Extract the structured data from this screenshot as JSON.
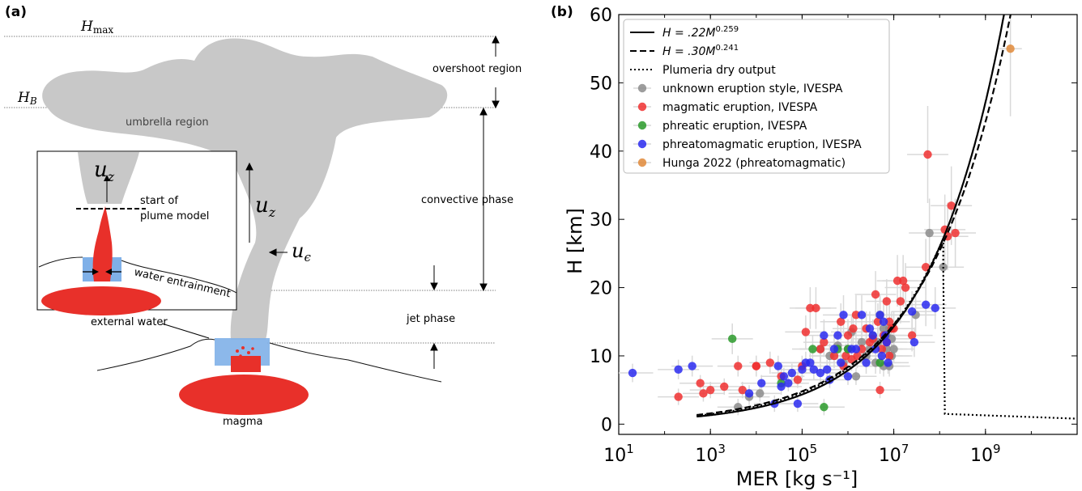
{
  "panel_a": {
    "label": "(a)",
    "h_max": "H",
    "h_max_sub": "max",
    "h_b": "H",
    "h_b_sub": "B",
    "overshoot": "overshoot region",
    "umbrella": "umbrella region",
    "convective": "convective phase",
    "jet": "jet phase",
    "external_water": "external water",
    "magma": "magma",
    "uz": "u",
    "uz_sub": "z",
    "ue": "u",
    "ue_sub": "ϵ",
    "inset": {
      "uz": "u",
      "uz_sub": "z",
      "start_line1": "start of",
      "start_line2": "plume model",
      "water_entrainment": "water entrainment"
    },
    "colors": {
      "plume": "#c8c8c8",
      "magma": "#e8302a",
      "water": "#7fb0e8"
    }
  },
  "chart_data": {
    "panel_label": "(b)",
    "type": "scatter",
    "xlabel": "MER [kg s⁻¹]",
    "ylabel": "H [km]",
    "xscale": "log",
    "xlim": [
      10,
      100000000000.0
    ],
    "ylim": [
      -1.5,
      60
    ],
    "x_ticks": [
      {
        "v": 10,
        "base": "10",
        "exp": "1"
      },
      {
        "v": 1000,
        "base": "10",
        "exp": "3"
      },
      {
        "v": 100000,
        "base": "10",
        "exp": "5"
      },
      {
        "v": 10000000,
        "base": "10",
        "exp": "7"
      },
      {
        "v": 1000000000,
        "base": "10",
        "exp": "9"
      }
    ],
    "y_ticks": [
      "0",
      "10",
      "20",
      "30",
      "40",
      "50",
      "60"
    ],
    "legend": {
      "position": "top-left",
      "line1_pre": "H = .22M",
      "line1_exp": "0.259",
      "line2_pre": "H = .30M",
      "line2_exp": "0.241",
      "line3": "Plumeria dry output"
    },
    "curves": [
      {
        "name": "H = .22M^0.259",
        "style": "solid",
        "coef": 0.22,
        "exp": 0.259
      },
      {
        "name": "H = .30M^0.241",
        "style": "dashed",
        "coef": 0.3,
        "exp": 0.241
      },
      {
        "name": "Plumeria dry output",
        "style": "dotted",
        "coef": 0.26,
        "exp": 0.25
      }
    ],
    "series": [
      {
        "name": "unknown eruption style, IVESPA",
        "color": "#8c8c8c",
        "points": [
          [
            4000.0,
            2.5
          ],
          [
            7000.0,
            4
          ],
          [
            12000.0,
            4.5
          ],
          [
            250000.0,
            11
          ],
          [
            400000.0,
            10
          ],
          [
            600000.0,
            11.5
          ],
          [
            800000.0,
            9
          ],
          [
            1000000.0,
            11
          ],
          [
            1200000.0,
            13.5
          ],
          [
            1500000.0,
            7
          ],
          [
            2000000.0,
            12
          ],
          [
            2500000.0,
            10
          ],
          [
            3000000.0,
            11
          ],
          [
            3500000.0,
            13
          ],
          [
            4000000.0,
            9
          ],
          [
            4500000.0,
            12
          ],
          [
            5000000.0,
            16
          ],
          [
            6000000.0,
            14
          ],
          [
            6000000.0,
            8.5
          ],
          [
            7000000.0,
            13
          ],
          [
            7000000.0,
            11
          ],
          [
            8000000.0,
            14
          ],
          [
            8000000.0,
            8.5
          ],
          [
            9000000.0,
            12.5
          ],
          [
            9000000.0,
            10
          ],
          [
            10000000.0,
            11
          ],
          [
            30000000.0,
            16
          ],
          [
            60000000.0,
            28
          ],
          [
            120000000.0,
            23
          ]
        ]
      },
      {
        "name": "magmatic eruption, IVESPA",
        "color": "#f03030",
        "points": [
          [
            200,
            4
          ],
          [
            600,
            6
          ],
          [
            700,
            4.5
          ],
          [
            1000,
            5
          ],
          [
            2000,
            5.5
          ],
          [
            4000,
            8.5
          ],
          [
            5000,
            5
          ],
          [
            10000.0,
            8.5
          ],
          [
            10000.0,
            8.5
          ],
          [
            20000.0,
            9
          ],
          [
            35000.0,
            7
          ],
          [
            80000.0,
            6.5
          ],
          [
            100000.0,
            8.5
          ],
          [
            120000.0,
            13.5
          ],
          [
            150000.0,
            17
          ],
          [
            200000.0,
            17
          ],
          [
            250000.0,
            11
          ],
          [
            300000.0,
            12
          ],
          [
            500000.0,
            10
          ],
          [
            700000.0,
            15
          ],
          [
            800000.0,
            8.5
          ],
          [
            900000.0,
            10
          ],
          [
            1000000.0,
            13
          ],
          [
            1200000.0,
            9.5
          ],
          [
            1300000.0,
            14
          ],
          [
            1500000.0,
            16
          ],
          [
            1600000.0,
            10
          ],
          [
            2000000.0,
            11
          ],
          [
            2500000.0,
            14
          ],
          [
            3000000.0,
            12
          ],
          [
            3500000.0,
            12.5
          ],
          [
            4000000.0,
            19
          ],
          [
            4500000.0,
            15
          ],
          [
            5000000.0,
            5
          ],
          [
            5500000.0,
            11
          ],
          [
            6000000.0,
            13
          ],
          [
            7000000.0,
            18
          ],
          [
            7000000.0,
            12
          ],
          [
            8000000.0,
            15
          ],
          [
            8000000.0,
            10
          ],
          [
            9000000.0,
            14
          ],
          [
            10000000.0,
            14
          ],
          [
            12000000.0,
            21
          ],
          [
            14000000.0,
            18
          ],
          [
            16000000.0,
            21
          ],
          [
            18000000.0,
            20
          ],
          [
            25000000.0,
            13
          ],
          [
            50000000.0,
            23
          ],
          [
            55000000.0,
            39.5
          ],
          [
            130000000.0,
            28.5
          ],
          [
            150000000.0,
            27.5
          ],
          [
            180000000.0,
            32
          ],
          [
            220000000.0,
            28
          ]
        ]
      },
      {
        "name": "phreatic eruption, IVESPA",
        "color": "#2a9a2a",
        "points": [
          [
            3000.0,
            12.5
          ],
          [
            35000.0,
            6
          ],
          [
            170000.0,
            11
          ],
          [
            300000.0,
            2.5
          ],
          [
            600000.0,
            11
          ],
          [
            1000000.0,
            11
          ],
          [
            5000000.0,
            9
          ]
        ]
      },
      {
        "name": "phreatomagmatic eruption, IVESPA",
        "color": "#2a2af0",
        "points": [
          [
            20,
            7.5
          ],
          [
            200,
            8
          ],
          [
            400,
            8.5
          ],
          [
            7000.0,
            4.5
          ],
          [
            13000.0,
            6
          ],
          [
            25000.0,
            3
          ],
          [
            30000.0,
            8.5
          ],
          [
            35000.0,
            5.5
          ],
          [
            40000.0,
            7
          ],
          [
            50000.0,
            6
          ],
          [
            60000.0,
            7.5
          ],
          [
            80000.0,
            3
          ],
          [
            100000.0,
            8
          ],
          [
            120000.0,
            9
          ],
          [
            150000.0,
            9
          ],
          [
            180000.0,
            8
          ],
          [
            250000.0,
            7.5
          ],
          [
            300000.0,
            13
          ],
          [
            350000.0,
            8
          ],
          [
            400000.0,
            6.5
          ],
          [
            500000.0,
            11
          ],
          [
            600000.0,
            13
          ],
          [
            700000.0,
            9
          ],
          [
            800000.0,
            16
          ],
          [
            1000000.0,
            7
          ],
          [
            1200000.0,
            11
          ],
          [
            1500000.0,
            11
          ],
          [
            2000000.0,
            16
          ],
          [
            2500000.0,
            9
          ],
          [
            3000000.0,
            14
          ],
          [
            3500000.0,
            13
          ],
          [
            4000000.0,
            11
          ],
          [
            5000000.0,
            16
          ],
          [
            5500000.0,
            10
          ],
          [
            6000000.0,
            15
          ],
          [
            6500000.0,
            13
          ],
          [
            7000000.0,
            12
          ],
          [
            7500000.0,
            9
          ],
          [
            25000000.0,
            16.5
          ],
          [
            28000000.0,
            12
          ],
          [
            50000000.0,
            17.5
          ],
          [
            80000000.0,
            17
          ]
        ]
      },
      {
        "name": "Hunga 2022 (phreatomagmatic)",
        "color": "#e08a3a",
        "points": [
          [
            3500000000.0,
            55
          ]
        ]
      }
    ]
  }
}
